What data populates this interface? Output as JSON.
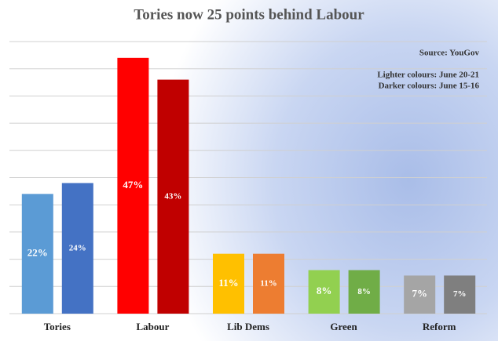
{
  "chart_data": {
    "type": "bar",
    "title": "Tories now 25 points behind Labour",
    "annotations": [
      "Source: YouGov",
      "Lighter colours: June 20-21",
      "Darker colours: June 15-16"
    ],
    "categories": [
      "Tories",
      "Labour",
      "Lib Dems",
      "Green",
      "Reform"
    ],
    "series": [
      {
        "values": [
          22,
          47,
          11,
          8,
          7
        ],
        "value_labels": [
          "22%",
          "47%",
          "11%",
          "8%",
          "7%"
        ],
        "colors": [
          "#5b9bd5",
          "#ff0000",
          "#ffc000",
          "#92d050",
          "#a5a5a5"
        ]
      },
      {
        "values": [
          24,
          43,
          11,
          8,
          7
        ],
        "value_labels": [
          "24%",
          "43%",
          "11%",
          "8%",
          "7%"
        ],
        "colors": [
          "#4472c4",
          "#c00000",
          "#ed7d31",
          "#70ad47",
          "#7f7f7f"
        ]
      }
    ],
    "ylim": [
      0,
      50
    ],
    "yticks": [
      0,
      5,
      10,
      15,
      20,
      25,
      30,
      35,
      40,
      45,
      50
    ],
    "grid": true
  }
}
